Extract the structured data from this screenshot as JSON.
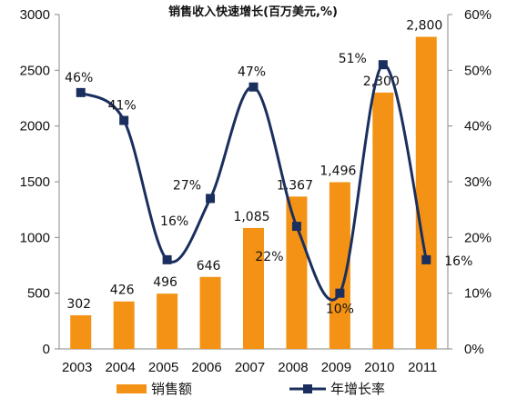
{
  "chart_data": {
    "type": "bar",
    "title": "销售收入快速增长(百万美元,%)",
    "categories": [
      "2003",
      "2004",
      "2005",
      "2006",
      "2007",
      "2008",
      "2009",
      "2010",
      "2011"
    ],
    "series": [
      {
        "name": "销售额",
        "type": "bar",
        "axis": "left",
        "color": "#f39214",
        "values": [
          302,
          426,
          496,
          646,
          1085,
          1367,
          1496,
          2300,
          2800
        ],
        "labels": [
          "302",
          "426",
          "496",
          "646",
          "1,085",
          "1,367",
          "1,496",
          "2,300",
          "2,800"
        ]
      },
      {
        "name": "年增长率",
        "type": "line",
        "axis": "right",
        "color": "#1b2f5e",
        "values": [
          46,
          41,
          16,
          27,
          47,
          22,
          10,
          51,
          16
        ],
        "labels": [
          "46%",
          "41%",
          "16%",
          "27%",
          "47%",
          "22%",
          "10%",
          "51%",
          "16%"
        ]
      }
    ],
    "y_left": {
      "min": 0,
      "max": 3000,
      "ticks": [
        "0",
        "500",
        "1000",
        "1500",
        "2000",
        "2500",
        "3000"
      ]
    },
    "y_right": {
      "min": 0,
      "max": 60,
      "ticks": [
        "0%",
        "10%",
        "20%",
        "30%",
        "40%",
        "50%",
        "60%"
      ]
    },
    "grid": false,
    "legend_position": "bottom"
  }
}
